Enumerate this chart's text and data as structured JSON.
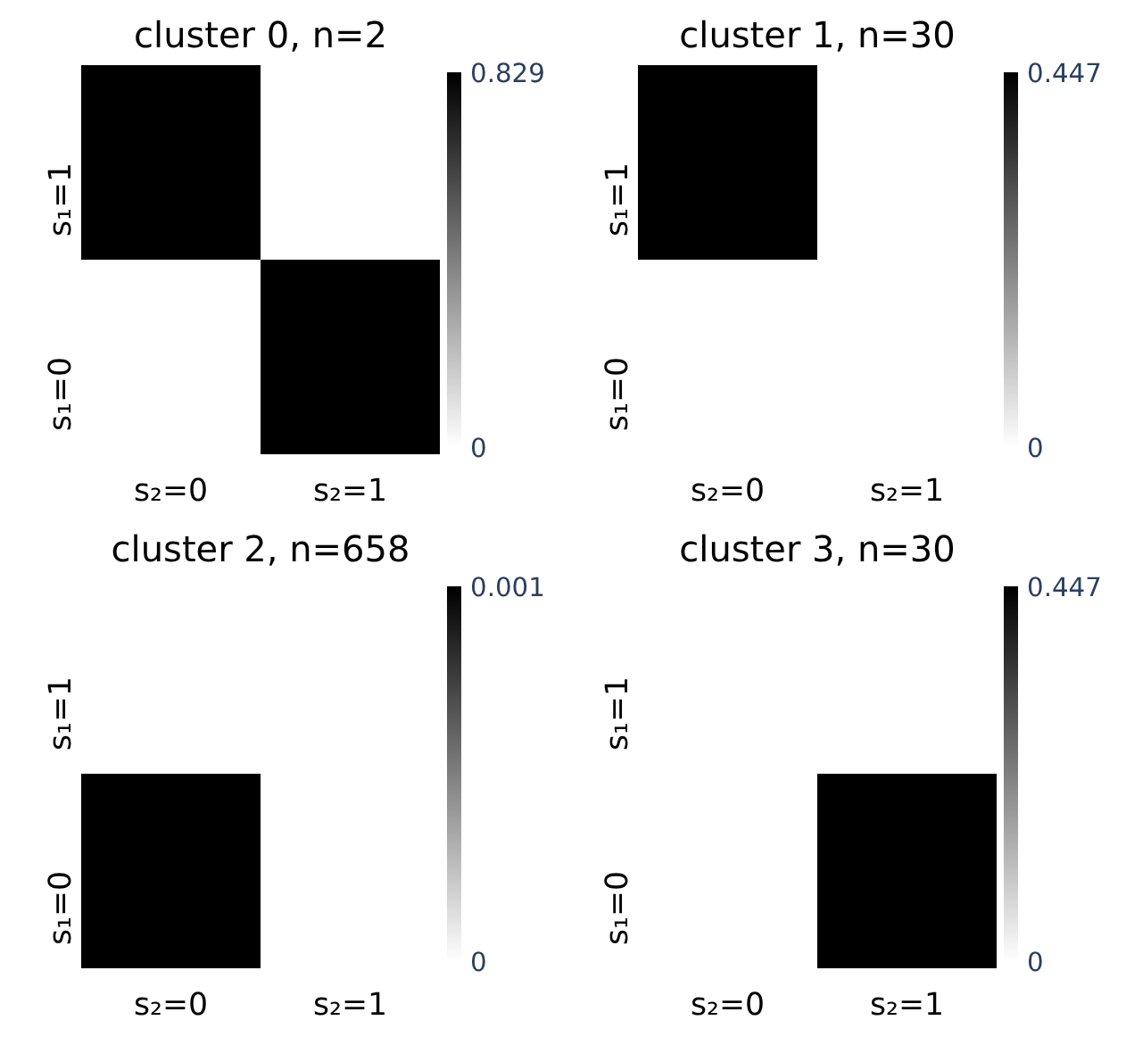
{
  "chart_data": [
    {
      "type": "heatmap",
      "title": "cluster 0, n=2",
      "categories": [
        "s₂=0",
        "s₂=1"
      ],
      "y_categories": [
        "s₁=1",
        "s₁=0"
      ],
      "cells": [
        [
          0.829,
          0
        ],
        [
          0,
          0.829
        ]
      ],
      "clim": [
        0,
        0.829
      ],
      "cticks": [
        0,
        0.829
      ]
    },
    {
      "type": "heatmap",
      "title": "cluster 1, n=30",
      "categories": [
        "s₂=0",
        "s₂=1"
      ],
      "y_categories": [
        "s₁=1",
        "s₁=0"
      ],
      "cells": [
        [
          0.447,
          0
        ],
        [
          0,
          0
        ]
      ],
      "clim": [
        0,
        0.447
      ],
      "cticks": [
        0,
        0.447
      ]
    },
    {
      "type": "heatmap",
      "title": "cluster 2, n=658",
      "categories": [
        "s₂=0",
        "s₂=1"
      ],
      "y_categories": [
        "s₁=1",
        "s₁=0"
      ],
      "cells": [
        [
          0,
          0
        ],
        [
          0.001,
          0
        ]
      ],
      "clim": [
        0,
        0.001
      ],
      "cticks": [
        0,
        0.001
      ]
    },
    {
      "type": "heatmap",
      "title": "cluster 3, n=30",
      "categories": [
        "s₂=0",
        "s₂=1"
      ],
      "y_categories": [
        "s₁=1",
        "s₁=0"
      ],
      "cells": [
        [
          0,
          0
        ],
        [
          0,
          0.447
        ]
      ],
      "clim": [
        0,
        0.447
      ],
      "cticks": [
        0,
        0.447
      ]
    }
  ]
}
